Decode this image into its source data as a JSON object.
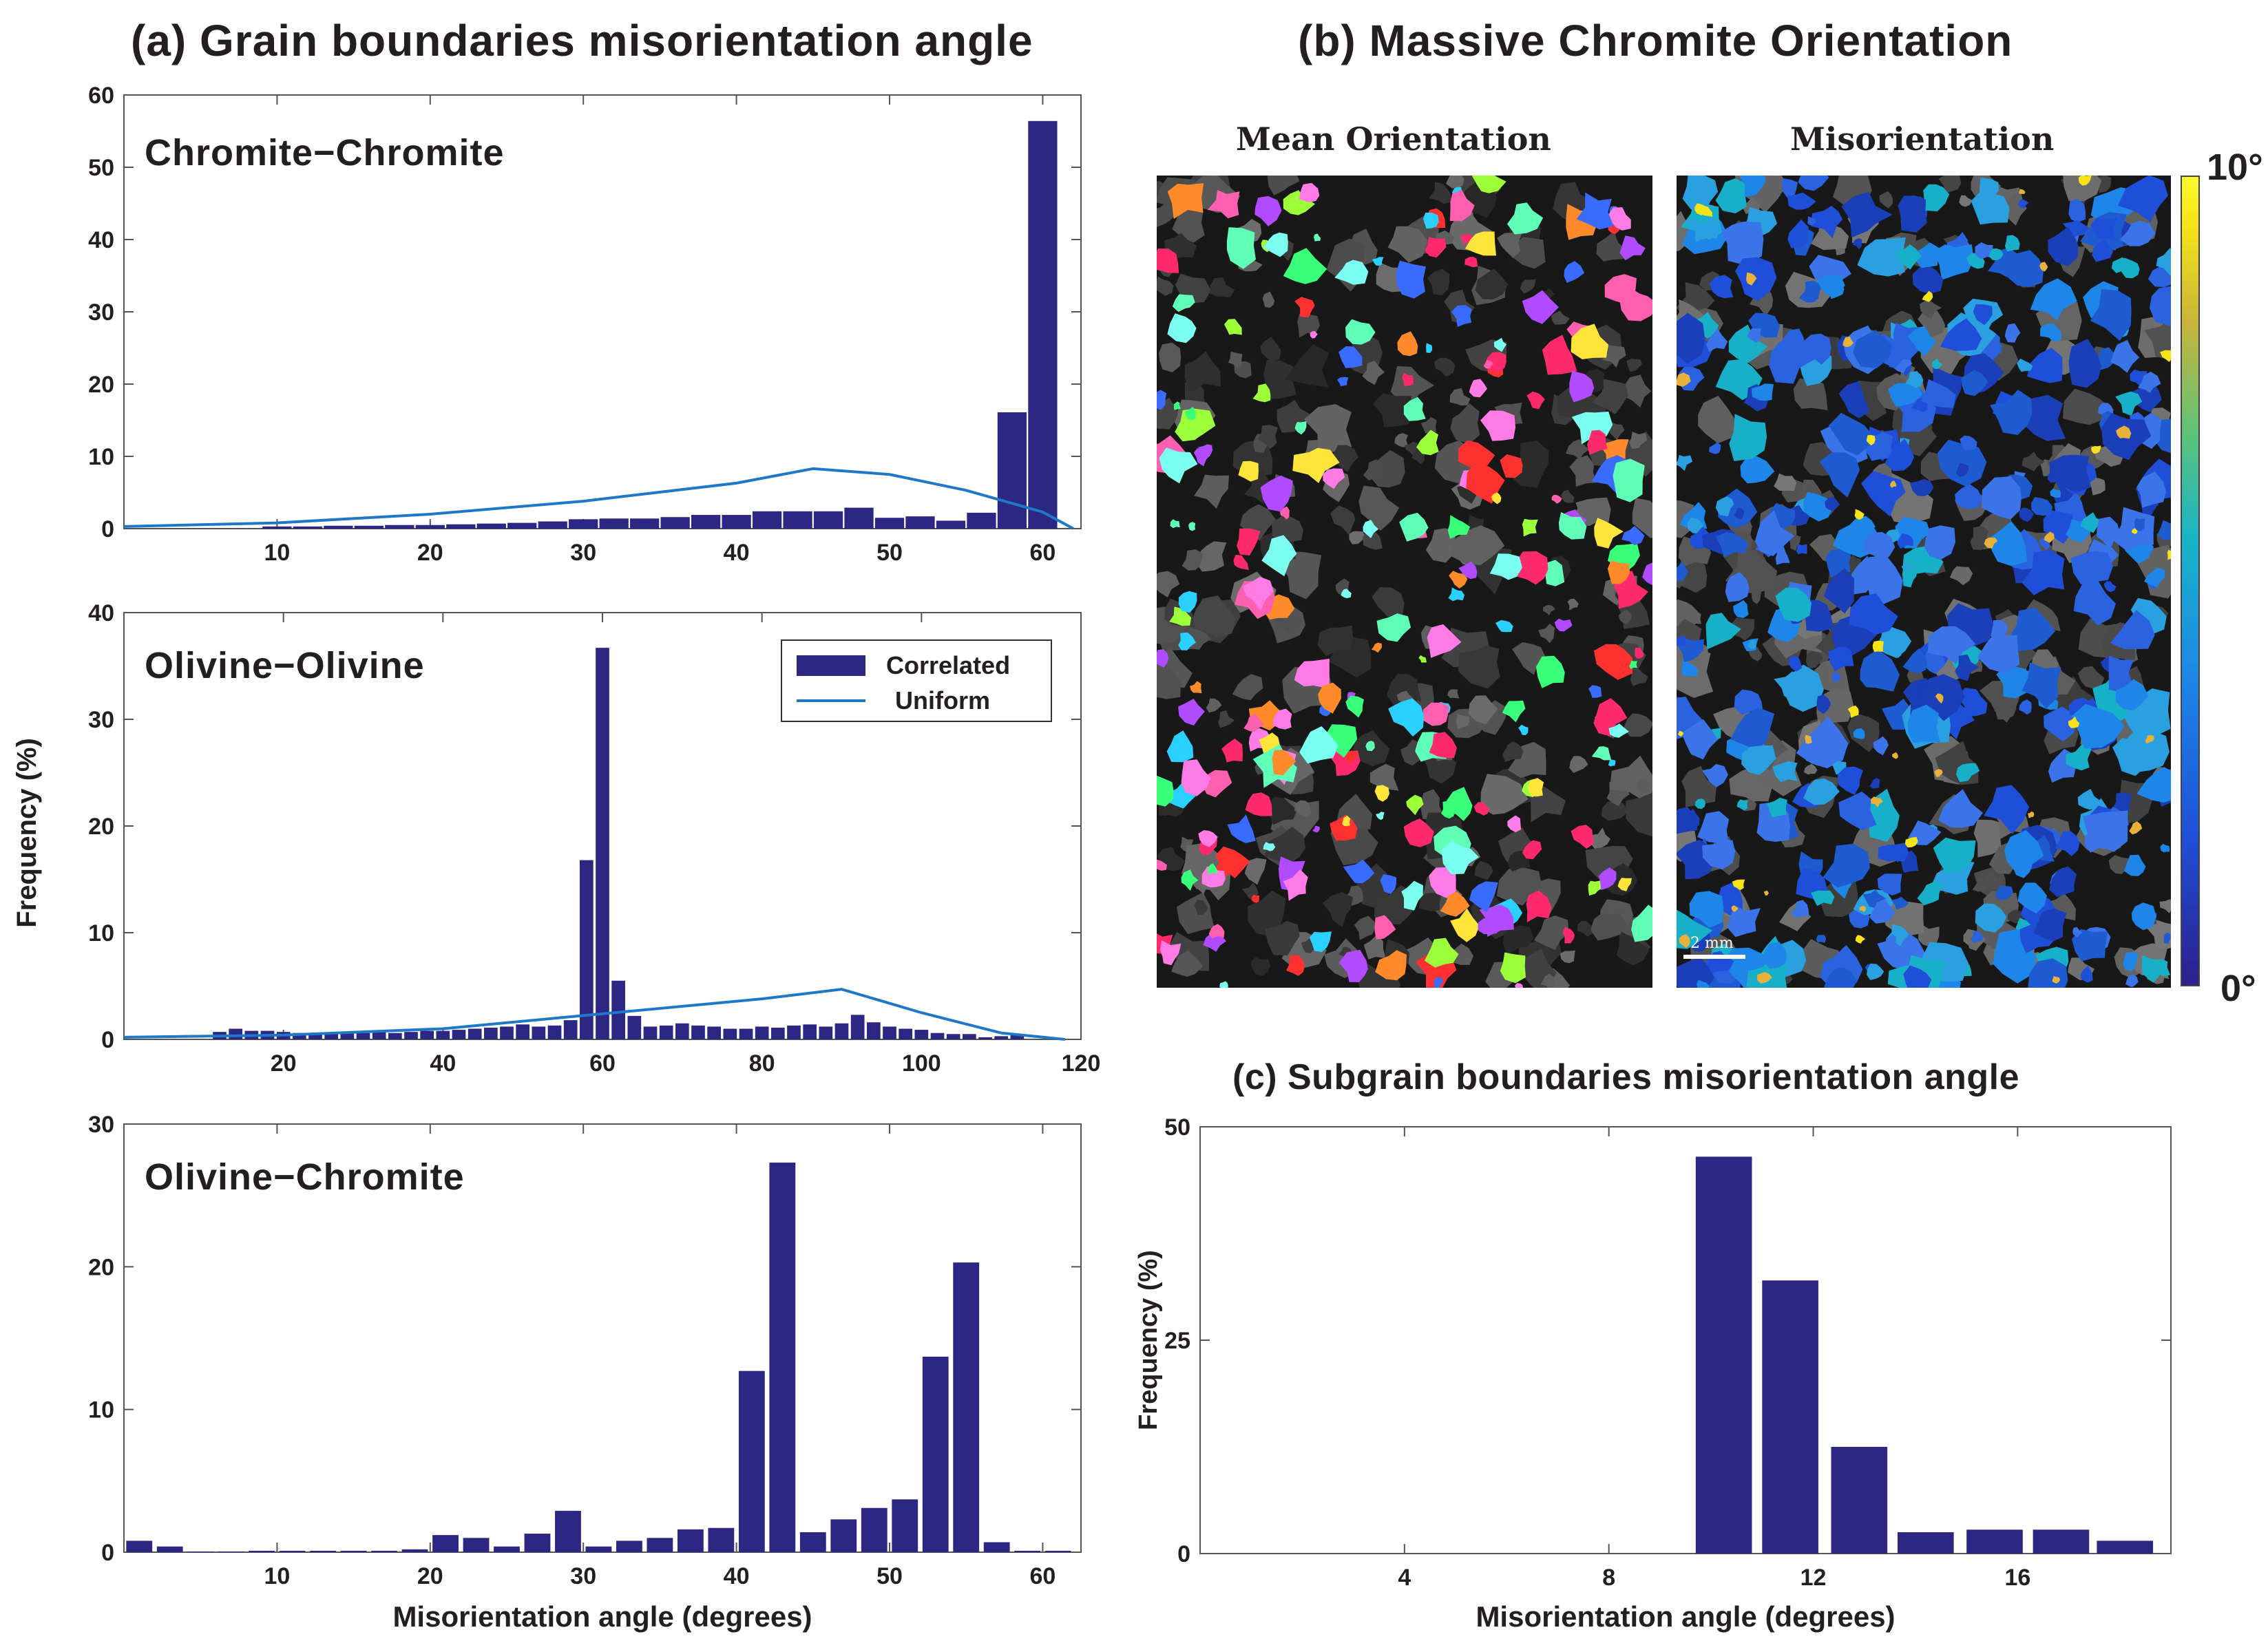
{
  "headings": {
    "a": "(a) Grain boundaries misorientation angle",
    "b": "(b) Massive Chromite Orientation",
    "c": "(c)  Subgrain boundaries misorientation angle"
  },
  "maps": {
    "mean_title": "Mean Orientation",
    "misorientation_title": "Misorientation",
    "scale_bar": "2 mm",
    "colorbar_max": "10°",
    "colorbar_min": "0°"
  },
  "colors": {
    "bar": "#2c2782",
    "uniform": "#1f77c8",
    "text": "#231f20"
  },
  "shared_ylabel": "Frequency (%)",
  "chart_data": [
    {
      "id": "chromite-chromite",
      "type": "bar",
      "panel_label": "Chromite−Chromite",
      "xlim": [
        0,
        62.5
      ],
      "ylim": [
        0,
        60
      ],
      "xticks": [
        10,
        20,
        30,
        40,
        50,
        60
      ],
      "yticks": [
        0,
        10,
        20,
        30,
        40,
        50,
        60
      ],
      "bar_width": 1.9,
      "x": [
        10,
        12,
        14,
        16,
        18,
        20,
        22,
        24,
        26,
        28,
        30,
        32,
        34,
        36,
        38,
        40,
        42,
        44,
        46,
        48,
        50,
        52,
        54,
        56,
        58,
        60
      ],
      "values": [
        0.3,
        0.3,
        0.4,
        0.4,
        0.5,
        0.5,
        0.6,
        0.7,
        0.8,
        1.0,
        1.3,
        1.4,
        1.4,
        1.6,
        1.9,
        1.9,
        2.4,
        2.4,
        2.4,
        2.9,
        1.5,
        1.7,
        1.1,
        2.2,
        16.1,
        56.4
      ],
      "uniform": {
        "x": [
          0,
          10,
          20,
          30,
          40,
          45,
          50,
          55,
          60,
          62
        ],
        "y": [
          0.3,
          0.8,
          2.0,
          3.8,
          6.3,
          8.3,
          7.5,
          5.3,
          2.3,
          0
        ]
      }
    },
    {
      "id": "olivine-olivine",
      "type": "bar",
      "panel_label": "Olivine−Olivine",
      "xlim": [
        0,
        120
      ],
      "ylim": [
        0,
        40
      ],
      "xticks": [
        20,
        40,
        60,
        80,
        100,
        120
      ],
      "yticks": [
        0,
        10,
        20,
        30,
        40
      ],
      "bar_width": 1.7,
      "x": [
        12,
        14,
        16,
        18,
        20,
        22,
        24,
        26,
        28,
        30,
        32,
        34,
        36,
        38,
        40,
        42,
        44,
        46,
        48,
        50,
        52,
        54,
        56,
        58,
        60,
        62,
        64,
        66,
        68,
        70,
        72,
        74,
        76,
        78,
        80,
        82,
        84,
        86,
        88,
        90,
        92,
        94,
        96,
        98,
        100,
        102,
        104,
        106,
        108,
        110,
        112
      ],
      "values": [
        0.7,
        1.0,
        0.8,
        0.8,
        0.7,
        0.6,
        0.5,
        0.5,
        0.7,
        0.6,
        0.7,
        0.6,
        0.7,
        0.8,
        0.8,
        0.9,
        1.0,
        1.1,
        1.2,
        1.4,
        1.2,
        1.3,
        1.8,
        16.8,
        36.7,
        5.5,
        2.2,
        1.2,
        1.3,
        1.5,
        1.3,
        1.2,
        1.0,
        1.0,
        1.2,
        1.1,
        1.3,
        1.4,
        1.2,
        1.5,
        2.3,
        1.6,
        1.2,
        1.0,
        0.9,
        0.6,
        0.5,
        0.5,
        0.2,
        0.3,
        0.5
      ],
      "uniform": {
        "x": [
          0,
          20,
          40,
          60,
          80,
          90,
          100,
          110,
          118
        ],
        "y": [
          0.2,
          0.4,
          1.0,
          2.4,
          3.8,
          4.7,
          2.5,
          0.6,
          0
        ]
      },
      "legend": {
        "placement": "top-right",
        "entries": [
          "Correlated",
          "Uniform"
        ]
      }
    },
    {
      "id": "olivine-chromite",
      "type": "bar",
      "panel_label": "Olivine−Chromite",
      "xlim": [
        0,
        62.5
      ],
      "ylim": [
        0,
        30
      ],
      "xticks": [
        10,
        20,
        30,
        40,
        50,
        60
      ],
      "yticks": [
        0,
        10,
        20,
        30
      ],
      "bar_width": 1.7,
      "xlabel": "Misorientation angle (degrees)",
      "x": [
        1,
        3,
        5,
        7,
        9,
        11,
        13,
        15,
        17,
        19,
        21,
        23,
        25,
        27,
        29,
        31,
        33,
        35,
        37,
        39,
        41,
        43,
        45,
        47,
        49,
        51,
        53,
        55,
        57,
        59,
        61
      ],
      "values": [
        0.8,
        0.4,
        0.05,
        0.05,
        0.1,
        0.1,
        0.1,
        0.1,
        0.1,
        0.2,
        1.2,
        1.0,
        0.4,
        1.3,
        2.9,
        0.4,
        0.8,
        1.0,
        1.6,
        1.7,
        12.7,
        27.3,
        1.4,
        2.3,
        3.1,
        3.7,
        13.7,
        20.3,
        0.7,
        0.1,
        0.1
      ]
    },
    {
      "id": "subgrain",
      "type": "bar",
      "panel_label": "",
      "xlim": [
        0,
        19
      ],
      "ylim": [
        0,
        50
      ],
      "xticks": [
        4,
        8,
        12,
        16
      ],
      "yticks": [
        0,
        25,
        50
      ],
      "bar_width": 1.1,
      "xlabel": "Misorientation angle (degrees)",
      "ylabel": "Frequency (%)",
      "x": [
        10.25,
        11.55,
        12.9,
        14.2,
        15.55,
        16.85,
        18.1
      ],
      "values": [
        46.5,
        32.0,
        12.5,
        2.5,
        2.8,
        2.8,
        1.5
      ]
    }
  ]
}
